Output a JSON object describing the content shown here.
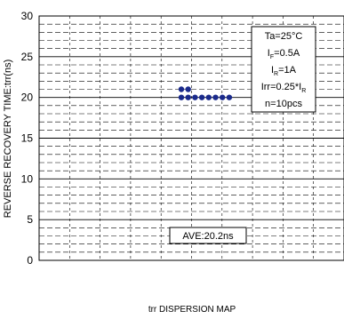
{
  "chart_data": {
    "type": "scatter",
    "title": "",
    "xlabel": "",
    "ylabel": "REVERSE RECOVERY TIME:trr(ns)",
    "ylim": [
      0,
      30
    ],
    "yticks": [
      0,
      5,
      10,
      15,
      20,
      25,
      30
    ],
    "y_tick_labels": [
      "0",
      "5",
      "10",
      "15",
      "20",
      "25",
      "30"
    ],
    "minor_grid_step": 1,
    "grid": true,
    "marker_color": "#1a2a8c",
    "points": [
      {
        "x": 1,
        "y": 21
      },
      {
        "x": 2,
        "y": 21
      },
      {
        "x": 1,
        "y": 20
      },
      {
        "x": 2,
        "y": 20
      },
      {
        "x": 3,
        "y": 20
      },
      {
        "x": 4,
        "y": 20
      },
      {
        "x": 5,
        "y": 20
      },
      {
        "x": 6,
        "y": 20
      },
      {
        "x": 7,
        "y": 20
      },
      {
        "x": 8,
        "y": 20
      }
    ],
    "conditions": {
      "line1": "Ta=25°C",
      "line2_base": "I",
      "line2_sub": "F",
      "line2_rest": "=0.5A",
      "line3_base": "I",
      "line3_sub": "R",
      "line3_rest": "=1A",
      "line4_base": "Irr=0.25*I",
      "line4_sub": "R",
      "line5": "n=10pcs"
    },
    "average_label": "AVE:20.2ns",
    "caption": "trr DISPERSION MAP"
  }
}
